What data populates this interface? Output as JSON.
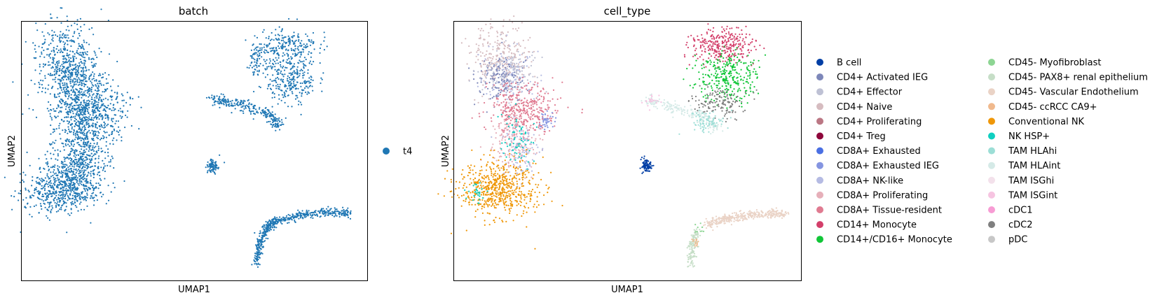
{
  "chart_data": [
    {
      "type": "scatter",
      "title": "batch",
      "xlabel": "UMAP1",
      "ylabel": "UMAP2",
      "xticks": [],
      "yticks": [],
      "legend_placement": "right",
      "legend": [
        {
          "label": "t4",
          "color": "#1f77b4"
        }
      ],
      "clusters": [
        {
          "name": "t4",
          "x_range": [
            0.05,
            0.28
          ],
          "y_range": [
            0.22,
            0.96
          ],
          "density": "dense-lobed"
        },
        {
          "name": "t4",
          "x_range": [
            0.56,
            0.85
          ],
          "y_range": [
            0.58,
            0.92
          ],
          "density": "arc"
        },
        {
          "name": "t4",
          "x_range": [
            0.54,
            0.57
          ],
          "y_range": [
            0.42,
            0.46
          ],
          "density": "small-blob"
        },
        {
          "name": "t4",
          "x_range": [
            0.68,
            0.95
          ],
          "y_range": [
            0.05,
            0.27
          ],
          "density": "curved-strand"
        }
      ]
    },
    {
      "type": "scatter",
      "title": "cell_type",
      "xlabel": "UMAP1",
      "ylabel": "UMAP2",
      "xticks": [],
      "yticks": [],
      "legend_placement": "right",
      "legend": [
        {
          "label": "B cell",
          "color": "#023fa5"
        },
        {
          "label": "CD4+ Activated IEG",
          "color": "#7d87b9"
        },
        {
          "label": "CD4+ Effector",
          "color": "#bec1d4"
        },
        {
          "label": "CD4+ Naive",
          "color": "#d6bcc0"
        },
        {
          "label": "CD4+ Proliferating",
          "color": "#bb7784"
        },
        {
          "label": "CD4+ Treg",
          "color": "#8e063b"
        },
        {
          "label": "CD8A+ Exhausted",
          "color": "#4a6fe3"
        },
        {
          "label": "CD8A+ Exhausted IEG",
          "color": "#8595e1"
        },
        {
          "label": "CD8A+ NK-like",
          "color": "#b5bbe3"
        },
        {
          "label": "CD8A+ Proliferating",
          "color": "#e6afb9"
        },
        {
          "label": "CD8A+ Tissue-resident",
          "color": "#e07b91"
        },
        {
          "label": "CD14+ Monocyte",
          "color": "#d33f6a"
        },
        {
          "label": "CD14+/CD16+ Monocyte",
          "color": "#11c638"
        },
        {
          "label": "CD45- Myofibroblast",
          "color": "#8dd593"
        },
        {
          "label": "CD45- PAX8+ renal epithelium",
          "color": "#c6dec7"
        },
        {
          "label": "CD45- Vascular Endothelium",
          "color": "#ead3c6"
        },
        {
          "label": "CD45- ccRCC CA9+",
          "color": "#f0b98d"
        },
        {
          "label": "Conventional NK",
          "color": "#ef9708"
        },
        {
          "label": "NK HSP+",
          "color": "#0fcfc0"
        },
        {
          "label": "TAM HLAhi",
          "color": "#9cded6"
        },
        {
          "label": "TAM HLAint",
          "color": "#d5eae7"
        },
        {
          "label": "TAM ISGhi",
          "color": "#f3e1eb"
        },
        {
          "label": "TAM ISGint",
          "color": "#f6c4e1"
        },
        {
          "label": "cDC1",
          "color": "#f79cd4"
        },
        {
          "label": "cDC2",
          "color": "#7f7f7f"
        },
        {
          "label": "pDC",
          "color": "#c7c7c7"
        }
      ]
    }
  ]
}
